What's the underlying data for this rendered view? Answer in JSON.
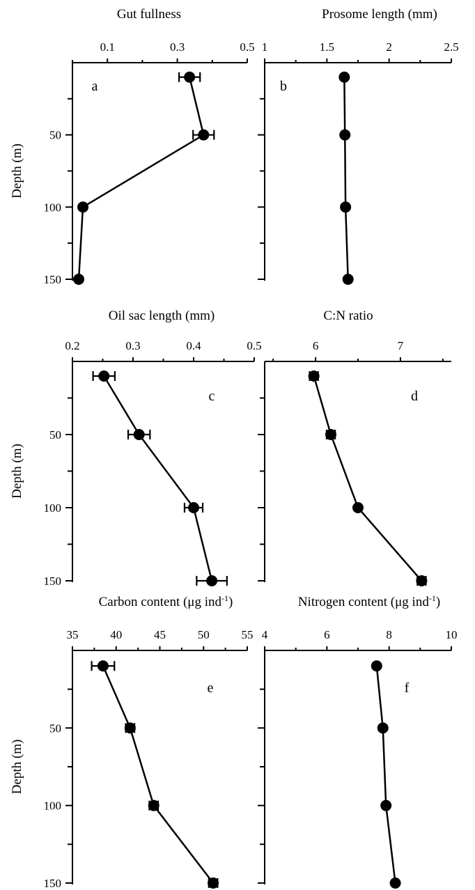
{
  "chart_data": [
    {
      "type": "line",
      "panel_label": "a",
      "xlabel": "Gut fullness",
      "ylabel": "Depth (m)",
      "xlim": [
        0,
        0.5
      ],
      "x_ticks": [
        0.1,
        0.3,
        0.5
      ],
      "x_tick_labels": [
        "0.1",
        "0.3",
        "0.5"
      ],
      "ylim": [
        0,
        150
      ],
      "y_ticks": [
        50,
        100,
        150
      ],
      "y_tick_labels": [
        "50",
        "100",
        "150"
      ],
      "y_inverted": true,
      "series": [
        {
          "depth": [
            10,
            50,
            100,
            150
          ],
          "values": [
            0.335,
            0.375,
            0.03,
            0.018
          ],
          "error": [
            0.03,
            0.03,
            null,
            null
          ]
        }
      ]
    },
    {
      "type": "line",
      "panel_label": "b",
      "xlabel": "Prosome length (mm)",
      "ylabel": "",
      "xlim": [
        1,
        2.5
      ],
      "x_ticks": [
        1,
        1.5,
        2,
        2.5
      ],
      "x_tick_labels": [
        "1",
        "1.5",
        "2",
        "2.5"
      ],
      "ylim": [
        0,
        150
      ],
      "y_ticks": [
        50,
        100,
        150
      ],
      "y_tick_labels": [],
      "y_inverted": true,
      "series": [
        {
          "depth": [
            10,
            50,
            100,
            150
          ],
          "values": [
            1.64,
            1.645,
            1.65,
            1.67
          ],
          "error": [
            null,
            null,
            null,
            null
          ]
        }
      ]
    },
    {
      "type": "line",
      "panel_label": "c",
      "xlabel": "Oil sac length (mm)",
      "ylabel": "Depth (m)",
      "xlim": [
        0.2,
        0.5
      ],
      "x_ticks": [
        0.2,
        0.3,
        0.4,
        0.5
      ],
      "x_tick_labels": [
        "0.2",
        "0.3",
        "0.4",
        "0.5"
      ],
      "ylim": [
        0,
        150
      ],
      "y_ticks": [
        50,
        100,
        150
      ],
      "y_tick_labels": [
        "50",
        "100",
        "150"
      ],
      "y_inverted": true,
      "series": [
        {
          "depth": [
            10,
            50,
            100,
            150
          ],
          "values": [
            0.252,
            0.31,
            0.4,
            0.43
          ],
          "error": [
            0.018,
            0.018,
            0.015,
            0.025
          ]
        }
      ]
    },
    {
      "type": "line",
      "panel_label": "d",
      "xlabel": "C:N ratio",
      "ylabel": "",
      "xlim": [
        5.4,
        7.6
      ],
      "x_ticks": [
        6,
        7
      ],
      "x_tick_labels": [
        "6",
        "7"
      ],
      "ylim": [
        0,
        150
      ],
      "y_ticks": [
        50,
        100,
        150
      ],
      "y_tick_labels": [],
      "y_inverted": true,
      "series": [
        {
          "depth": [
            10,
            50,
            100,
            150
          ],
          "values": [
            5.98,
            6.18,
            6.5,
            7.25
          ],
          "error": [
            0.05,
            0.05,
            null,
            0.05
          ]
        }
      ]
    },
    {
      "type": "line",
      "panel_label": "e",
      "xlabel": "Carbon content (μg ind",
      "xlabel_superscript": "-1",
      "xlabel_suffix": ")",
      "ylabel": "Depth (m)",
      "xlim": [
        35,
        55
      ],
      "x_ticks": [
        35,
        40,
        45,
        50,
        55
      ],
      "x_tick_labels": [
        "35",
        "40",
        "45",
        "50",
        "55"
      ],
      "ylim": [
        0,
        150
      ],
      "y_ticks": [
        50,
        100,
        150
      ],
      "y_tick_labels": [
        "50",
        "100",
        "150"
      ],
      "y_inverted": true,
      "series": [
        {
          "depth": [
            10,
            50,
            100,
            150
          ],
          "values": [
            38.5,
            41.6,
            44.3,
            51.1
          ],
          "error": [
            1.3,
            0.5,
            0.5,
            0.5
          ]
        }
      ]
    },
    {
      "type": "line",
      "panel_label": "f",
      "xlabel": "Nitrogen content (μg ind",
      "xlabel_superscript": "-1",
      "xlabel_suffix": ")",
      "ylabel": "",
      "xlim": [
        4,
        10
      ],
      "x_ticks": [
        4,
        6,
        8,
        10
      ],
      "x_tick_labels": [
        "4",
        "6",
        "8",
        "10"
      ],
      "ylim": [
        0,
        150
      ],
      "y_ticks": [
        50,
        100,
        150
      ],
      "y_tick_labels": [],
      "y_inverted": true,
      "series": [
        {
          "depth": [
            10,
            50,
            100,
            150
          ],
          "values": [
            7.6,
            7.8,
            7.9,
            8.2
          ],
          "error": [
            null,
            null,
            null,
            null
          ]
        }
      ]
    }
  ]
}
